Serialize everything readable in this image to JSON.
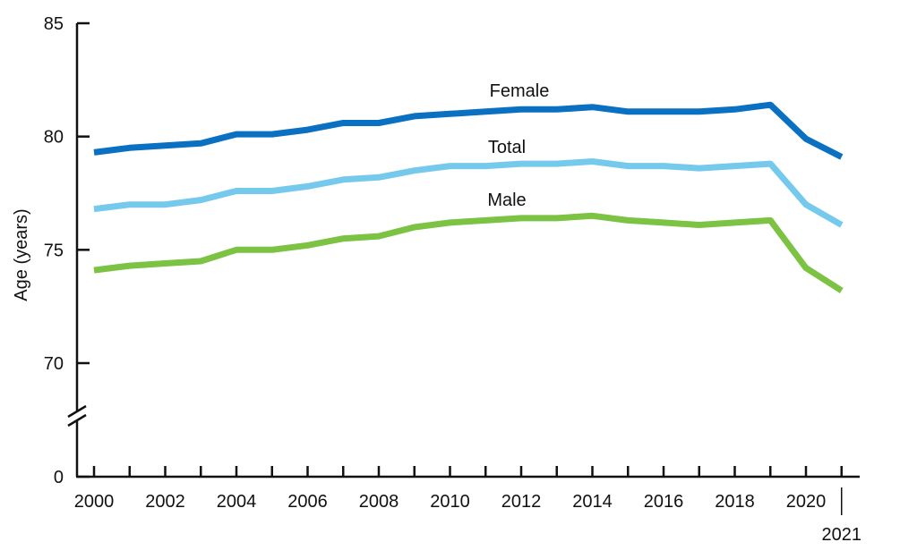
{
  "chart_data": {
    "type": "line",
    "title": "",
    "xlabel": "",
    "ylabel": "Age (years)",
    "ylim": [
      70,
      85
    ],
    "y_axis_break": true,
    "y_ticks": [
      "0",
      "70",
      "75",
      "80",
      "85"
    ],
    "x_ticks": [
      "2000",
      "2002",
      "2004",
      "2006",
      "2008",
      "2010",
      "2012",
      "2014",
      "2016",
      "2018",
      "2020"
    ],
    "x_extra_tick": "2021",
    "x": [
      2000,
      2001,
      2002,
      2003,
      2004,
      2005,
      2006,
      2007,
      2008,
      2009,
      2010,
      2011,
      2012,
      2013,
      2014,
      2015,
      2016,
      2017,
      2018,
      2019,
      2020,
      2021
    ],
    "series": [
      {
        "name": "Female",
        "color": "#0a70c2",
        "values": [
          79.3,
          79.5,
          79.6,
          79.7,
          80.1,
          80.1,
          80.3,
          80.6,
          80.6,
          80.9,
          81.0,
          81.1,
          81.2,
          81.2,
          81.3,
          81.1,
          81.1,
          81.1,
          81.2,
          81.4,
          79.9,
          79.1
        ]
      },
      {
        "name": "Total",
        "color": "#74c9ec",
        "values": [
          76.8,
          77.0,
          77.0,
          77.2,
          77.6,
          77.6,
          77.8,
          78.1,
          78.2,
          78.5,
          78.7,
          78.7,
          78.8,
          78.8,
          78.9,
          78.7,
          78.7,
          78.6,
          78.7,
          78.8,
          77.0,
          76.1
        ]
      },
      {
        "name": "Male",
        "color": "#7cc243",
        "values": [
          74.1,
          74.3,
          74.4,
          74.5,
          75.0,
          75.0,
          75.2,
          75.5,
          75.6,
          76.0,
          76.2,
          76.3,
          76.4,
          76.4,
          76.5,
          76.3,
          76.2,
          76.1,
          76.2,
          76.3,
          74.2,
          73.2
        ]
      }
    ],
    "grid": false,
    "legend": "inline-labels"
  }
}
